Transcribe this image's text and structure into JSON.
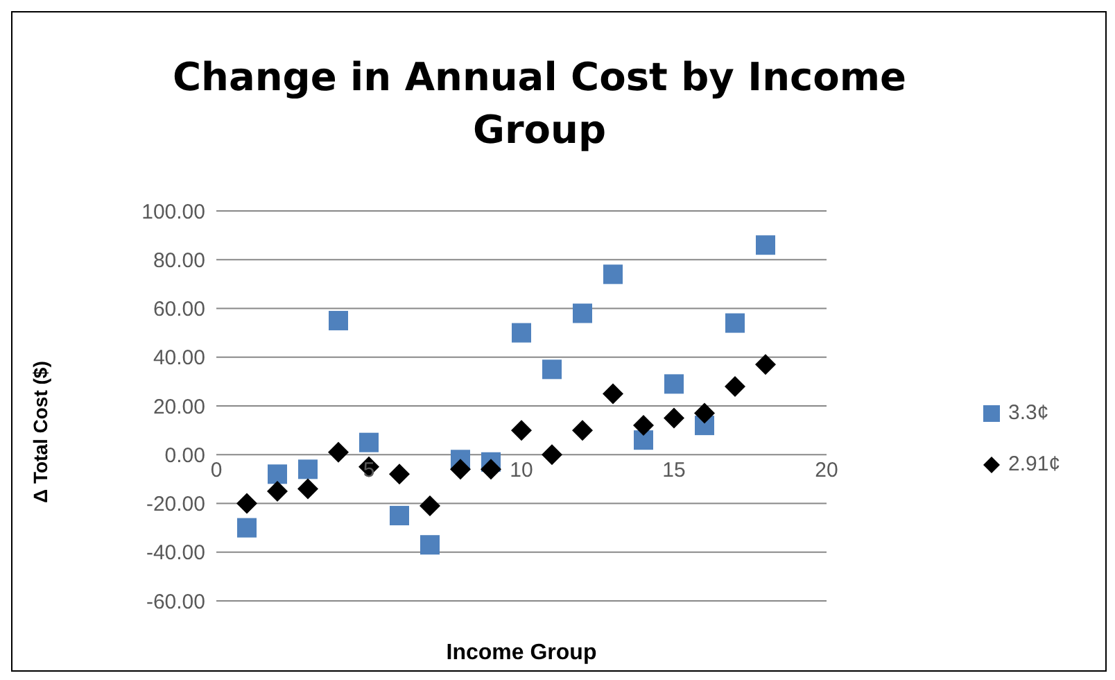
{
  "chart_data": {
    "type": "scatter",
    "title": "Change in Annual Cost by Income Group",
    "xlabel": "Income Group",
    "ylabel": "Δ Total Cost ($)",
    "xlim": [
      0,
      20
    ],
    "xticks": [
      0,
      5,
      10,
      15,
      20
    ],
    "ylim": [
      -60,
      100
    ],
    "yticks": [
      {
        "value": -60,
        "label": "-60.00"
      },
      {
        "value": -40,
        "label": "-40.00"
      },
      {
        "value": -20,
        "label": "-20.00"
      },
      {
        "value": 0,
        "label": "0.00"
      },
      {
        "value": 20,
        "label": "20.00"
      },
      {
        "value": 40,
        "label": "40.00"
      },
      {
        "value": 60,
        "label": "60.00"
      },
      {
        "value": 80,
        "label": "80.00"
      },
      {
        "value": 100,
        "label": "100.00"
      }
    ],
    "grid": "y",
    "legend": "right",
    "x": [
      1,
      2,
      3,
      4,
      5,
      6,
      7,
      8,
      9,
      10,
      11,
      12,
      13,
      14,
      15,
      16,
      17,
      18
    ],
    "series": [
      {
        "name": "3.3¢",
        "color": "#4f81bd",
        "marker": "square",
        "values": [
          -30,
          -8,
          -6,
          55,
          5,
          -25,
          -37,
          -2,
          -3,
          50,
          35,
          58,
          74,
          6,
          29,
          12,
          54,
          86
        ]
      },
      {
        "name": "2.91¢",
        "color": "#000000",
        "marker": "diamond",
        "values": [
          -20,
          -15,
          -14,
          1,
          -5,
          -8,
          -21,
          -6,
          -6,
          10,
          0,
          10,
          25,
          12,
          15,
          17,
          28,
          37
        ]
      }
    ]
  }
}
